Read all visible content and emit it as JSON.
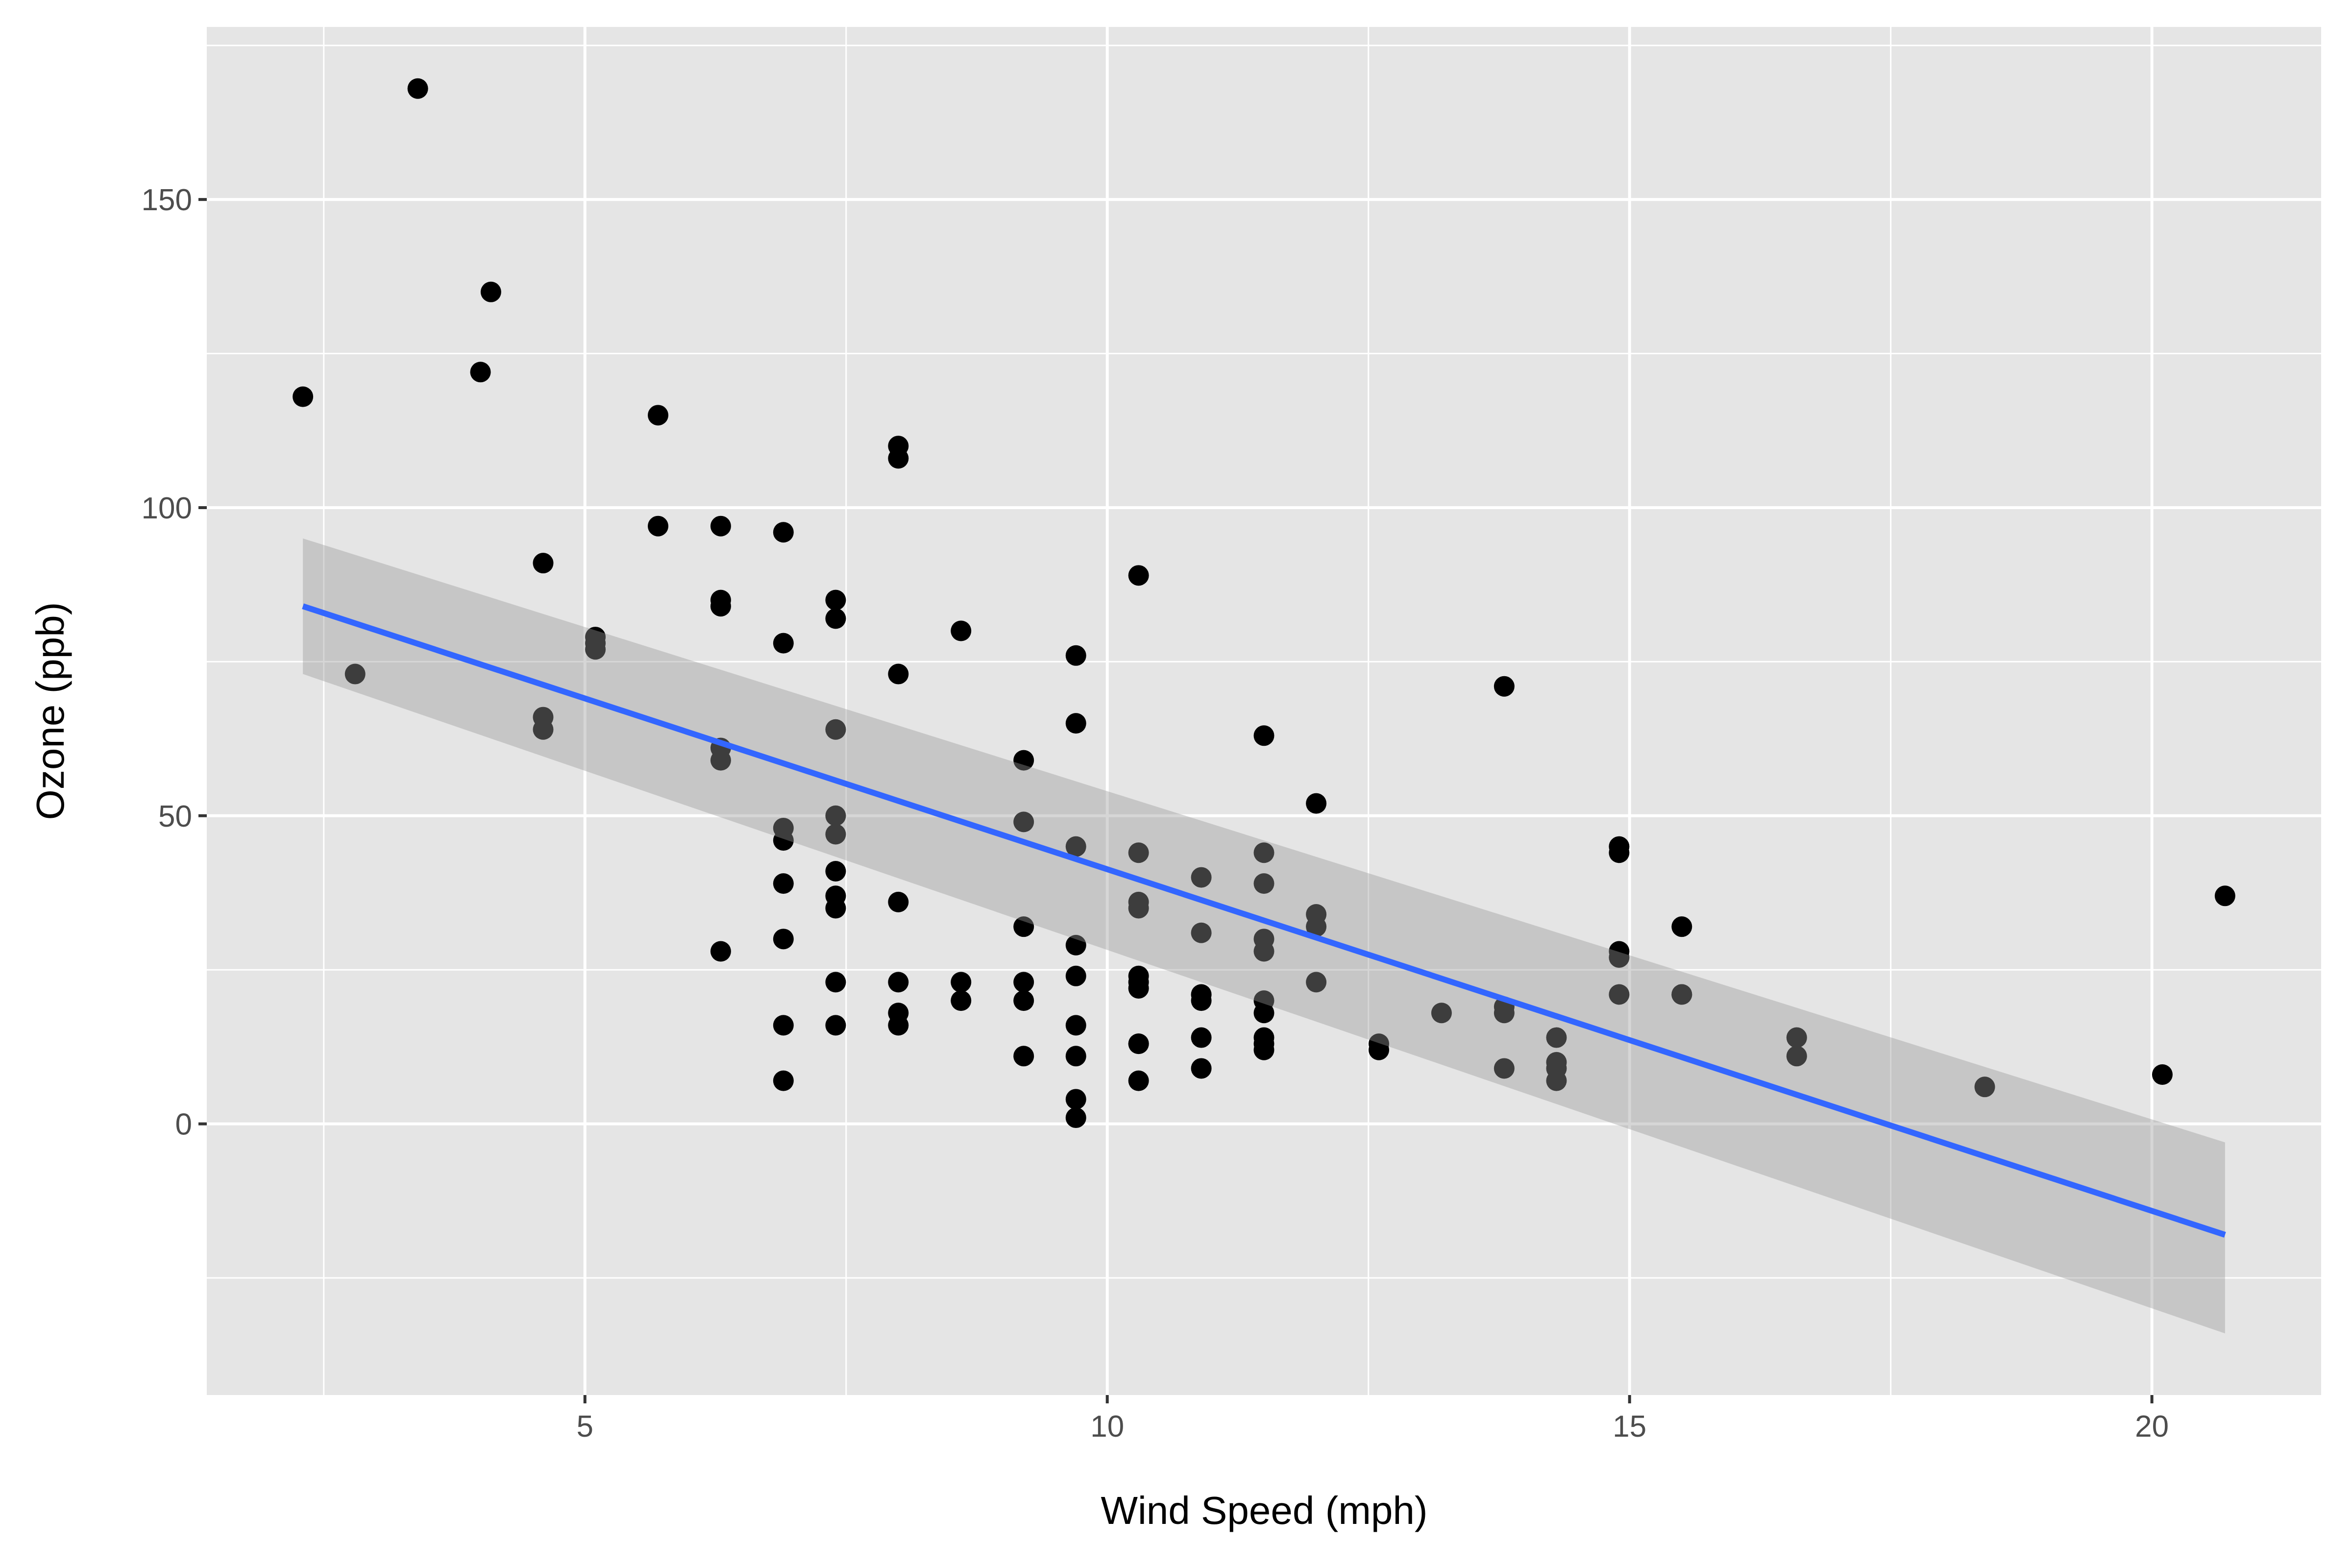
{
  "chart_data": {
    "type": "scatter",
    "title": "",
    "xlabel": "Wind Speed (mph)",
    "ylabel": "Ozone (ppb)",
    "xlim": [
      1.38,
      21.62
    ],
    "ylim": [
      -44,
      178
    ],
    "x_ticks": [
      5,
      10,
      15,
      20
    ],
    "x_tick_labels": [
      "5",
      "10",
      "15",
      "20"
    ],
    "y_ticks": [
      0,
      50,
      100,
      150
    ],
    "y_tick_labels": [
      "0",
      "50",
      "100",
      "150"
    ],
    "grid": true,
    "legend": "none",
    "colors": {
      "panel": "#E5E5E5",
      "grid": "#FFFFFF",
      "points": "#000000",
      "line": "#3366FF",
      "band": "#999999"
    },
    "points": [
      [
        7.4,
        41
      ],
      [
        8.0,
        36
      ],
      [
        12.6,
        12
      ],
      [
        11.5,
        18
      ],
      [
        14.9,
        28
      ],
      [
        8.6,
        23
      ],
      [
        13.8,
        19
      ],
      [
        20.1,
        8
      ],
      [
        6.9,
        7
      ],
      [
        9.7,
        16
      ],
      [
        9.2,
        11
      ],
      [
        10.9,
        14
      ],
      [
        13.2,
        18
      ],
      [
        11.5,
        14
      ],
      [
        12.0,
        34
      ],
      [
        18.4,
        6
      ],
      [
        11.5,
        30
      ],
      [
        9.7,
        11
      ],
      [
        9.7,
        1
      ],
      [
        16.6,
        11
      ],
      [
        9.7,
        4
      ],
      [
        12.0,
        32
      ],
      [
        12.0,
        23
      ],
      [
        14.9,
        45
      ],
      [
        5.7,
        115
      ],
      [
        7.4,
        37
      ],
      [
        9.7,
        29
      ],
      [
        13.8,
        71
      ],
      [
        11.5,
        39
      ],
      [
        8.0,
        23
      ],
      [
        14.9,
        21
      ],
      [
        20.7,
        37
      ],
      [
        9.2,
        20
      ],
      [
        11.5,
        12
      ],
      [
        10.3,
        13
      ],
      [
        4.1,
        135
      ],
      [
        9.2,
        49
      ],
      [
        9.2,
        32
      ],
      [
        4.6,
        64
      ],
      [
        10.9,
        40
      ],
      [
        5.1,
        77
      ],
      [
        6.3,
        97
      ],
      [
        5.7,
        97
      ],
      [
        7.4,
        85
      ],
      [
        14.3,
        10
      ],
      [
        14.9,
        27
      ],
      [
        14.3,
        7
      ],
      [
        6.9,
        48
      ],
      [
        10.3,
        35
      ],
      [
        6.3,
        61
      ],
      [
        5.1,
        79
      ],
      [
        11.5,
        63
      ],
      [
        6.9,
        16
      ],
      [
        8.6,
        80
      ],
      [
        8.0,
        108
      ],
      [
        8.6,
        20
      ],
      [
        12.0,
        52
      ],
      [
        7.4,
        82
      ],
      [
        7.4,
        50
      ],
      [
        7.4,
        64
      ],
      [
        9.2,
        59
      ],
      [
        6.9,
        39
      ],
      [
        13.8,
        9
      ],
      [
        7.4,
        16
      ],
      [
        6.9,
        78
      ],
      [
        7.4,
        35
      ],
      [
        4.6,
        66
      ],
      [
        4.0,
        122
      ],
      [
        10.3,
        89
      ],
      [
        8.0,
        110
      ],
      [
        11.5,
        44
      ],
      [
        11.5,
        28
      ],
      [
        9.7,
        65
      ],
      [
        10.3,
        22
      ],
      [
        6.3,
        59
      ],
      [
        7.4,
        23
      ],
      [
        10.9,
        31
      ],
      [
        10.3,
        44
      ],
      [
        15.5,
        21
      ],
      [
        14.3,
        9
      ],
      [
        9.7,
        45
      ],
      [
        3.4,
        168
      ],
      [
        8.0,
        73
      ],
      [
        9.7,
        76
      ],
      [
        2.3,
        118
      ],
      [
        6.3,
        84
      ],
      [
        6.3,
        85
      ],
      [
        6.9,
        96
      ],
      [
        5.1,
        78
      ],
      [
        2.8,
        73
      ],
      [
        4.6,
        91
      ],
      [
        7.4,
        47
      ],
      [
        15.5,
        32
      ],
      [
        10.9,
        20
      ],
      [
        10.3,
        23
      ],
      [
        10.9,
        21
      ],
      [
        9.7,
        24
      ],
      [
        14.9,
        44
      ],
      [
        15.5,
        21
      ],
      [
        6.3,
        28
      ],
      [
        10.9,
        9
      ],
      [
        11.5,
        13
      ],
      [
        6.9,
        46
      ],
      [
        13.8,
        18
      ],
      [
        10.3,
        13
      ],
      [
        10.3,
        24
      ],
      [
        8.0,
        16
      ],
      [
        12.6,
        13
      ],
      [
        9.2,
        23
      ],
      [
        10.3,
        36
      ],
      [
        10.3,
        7
      ],
      [
        16.6,
        14
      ],
      [
        6.9,
        30
      ],
      [
        14.3,
        14
      ],
      [
        8.0,
        18
      ],
      [
        11.5,
        20
      ]
    ],
    "fit": {
      "method": "lm",
      "x_range": [
        2.3,
        20.7
      ],
      "y_at_range": [
        84,
        -18
      ],
      "ci_lower_at_range": [
        73,
        -34
      ],
      "ci_upper_at_range": [
        95,
        -3
      ]
    }
  }
}
